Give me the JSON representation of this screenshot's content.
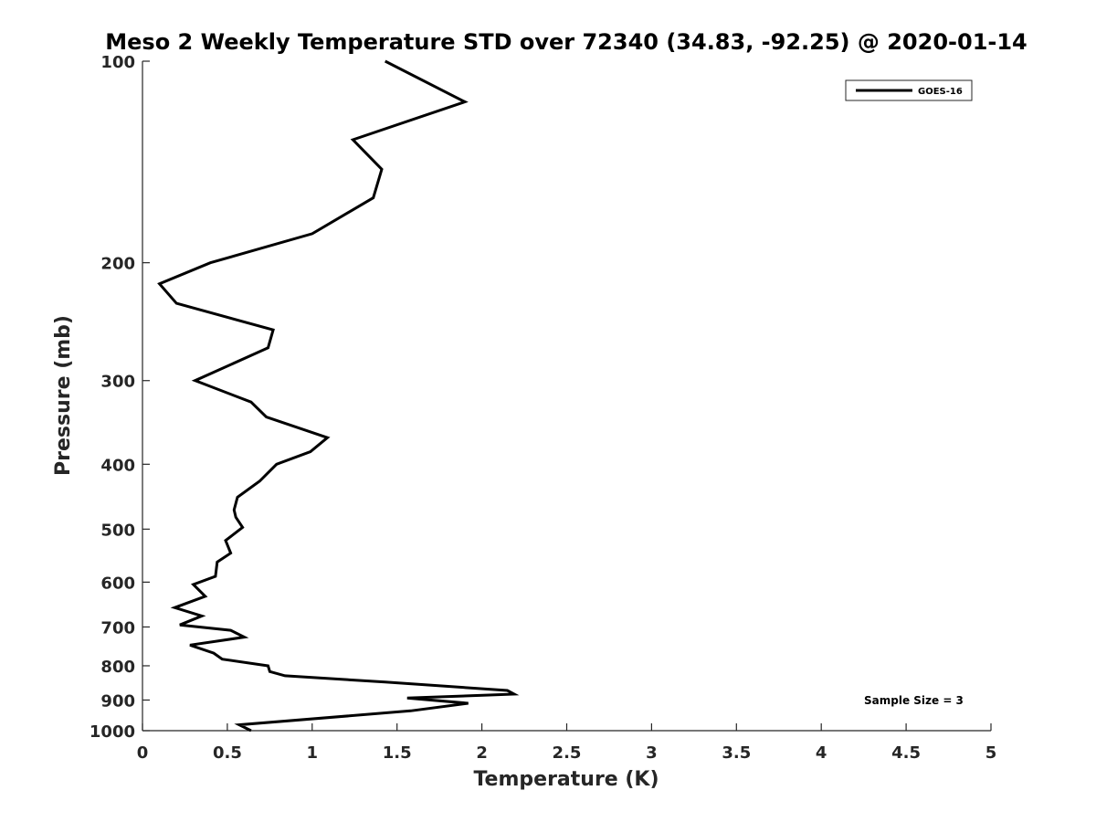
{
  "chart_data": {
    "type": "line",
    "title": "Meso 2 Weekly Temperature STD over 72340 (34.83, -92.25) @ 2020-01-14",
    "xlabel": "Temperature (K)",
    "ylabel": "Pressure (mb)",
    "xlim": [
      0,
      5
    ],
    "ylim": [
      1000,
      100
    ],
    "yscale": "log",
    "y_reversed": true,
    "grid": false,
    "legend_position": "top-right",
    "x_ticks": [
      "0",
      "0.5",
      "1",
      "1.5",
      "2",
      "2.5",
      "3",
      "3.5",
      "4",
      "4.5",
      "5"
    ],
    "y_ticks": [
      "100",
      "200",
      "300",
      "400",
      "500",
      "600",
      "700",
      "800",
      "900",
      "1000"
    ],
    "series": [
      {
        "name": "GOES-16",
        "color": "#000000",
        "points": [
          [
            1.43,
            100
          ],
          [
            1.9,
            115
          ],
          [
            1.24,
            131
          ],
          [
            1.41,
            145
          ],
          [
            1.36,
            160
          ],
          [
            1.0,
            181
          ],
          [
            0.4,
            200
          ],
          [
            0.1,
            215
          ],
          [
            0.2,
            230
          ],
          [
            0.77,
            252
          ],
          [
            0.74,
            268
          ],
          [
            0.31,
            300
          ],
          [
            0.64,
            323
          ],
          [
            0.73,
            340
          ],
          [
            1.09,
            365
          ],
          [
            0.99,
            383
          ],
          [
            0.79,
            400
          ],
          [
            0.69,
            424
          ],
          [
            0.56,
            448
          ],
          [
            0.54,
            468
          ],
          [
            0.55,
            480
          ],
          [
            0.59,
            497
          ],
          [
            0.49,
            520
          ],
          [
            0.52,
            543
          ],
          [
            0.44,
            560
          ],
          [
            0.43,
            588
          ],
          [
            0.3,
            605
          ],
          [
            0.37,
            630
          ],
          [
            0.19,
            655
          ],
          [
            0.35,
            674
          ],
          [
            0.22,
            695
          ],
          [
            0.52,
            708
          ],
          [
            0.6,
            725
          ],
          [
            0.28,
            745
          ],
          [
            0.42,
            766
          ],
          [
            0.47,
            782
          ],
          [
            0.74,
            800
          ],
          [
            0.75,
            816
          ],
          [
            0.84,
            828
          ],
          [
            1.43,
            846
          ],
          [
            2.15,
            871
          ],
          [
            2.19,
            882
          ],
          [
            1.56,
            894
          ],
          [
            1.92,
            910
          ],
          [
            1.58,
            934
          ],
          [
            0.57,
            980
          ],
          [
            0.64,
            1000
          ]
        ]
      }
    ],
    "annotations": [
      "Sample Size = 3"
    ]
  }
}
